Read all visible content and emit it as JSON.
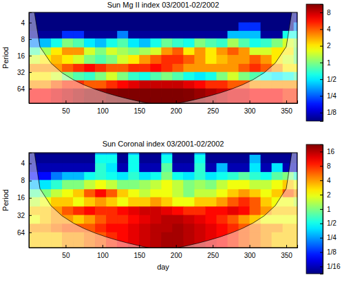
{
  "chart_data": [
    {
      "type": "heatmap",
      "title": "Sun Mg II index 03/2001-02/2002",
      "y_label": "Period",
      "x": [
        0,
        15,
        30,
        45,
        60,
        75,
        90,
        105,
        120,
        135,
        150,
        165,
        180,
        195,
        210,
        225,
        240,
        255,
        270,
        285,
        300,
        315,
        330,
        345,
        360
      ],
      "y": [
        2.8,
        4,
        5.6,
        8,
        11,
        16,
        22,
        32,
        45,
        64,
        90
      ],
      "z": [
        [
          0.06,
          0.06,
          0.06,
          0.06,
          0.06,
          0.06,
          0.06,
          0.06,
          0.06,
          0.06,
          0.06,
          0.06,
          0.06,
          0.06,
          0.06,
          0.06,
          0.06,
          0.06,
          0.06,
          0.06,
          0.06,
          0.06,
          0.06,
          0.06,
          0.06
        ],
        [
          0.07,
          0.07,
          0.07,
          0.07,
          0.07,
          0.07,
          0.07,
          0.07,
          0.07,
          0.07,
          0.07,
          0.07,
          0.07,
          0.07,
          0.07,
          0.07,
          0.07,
          0.07,
          0.07,
          0.07,
          0.07,
          0.07,
          0.07,
          0.07,
          0.1
        ],
        [
          0.08,
          0.08,
          0.08,
          0.08,
          0.08,
          0.08,
          0.08,
          0.08,
          0.08,
          0.08,
          0.08,
          0.08,
          0.08,
          0.08,
          0.08,
          0.08,
          0.08,
          0.08,
          0.08,
          0.2,
          0.2,
          0.08,
          0.08,
          0.08,
          0.3
        ],
        [
          0.1,
          0.1,
          0.1,
          0.2,
          0.2,
          0.1,
          0.1,
          0.1,
          0.3,
          0.1,
          0.1,
          0.1,
          0.1,
          0.1,
          0.1,
          0.1,
          0.1,
          0.1,
          0.4,
          0.4,
          0.4,
          0.1,
          0.1,
          0.6,
          0.6
        ],
        [
          0.3,
          0.4,
          0.6,
          1,
          0.8,
          0.5,
          0.4,
          0.6,
          0.8,
          0.5,
          0.4,
          0.6,
          0.9,
          0.7,
          0.6,
          1,
          0.8,
          0.7,
          1.2,
          0.8,
          0.6,
          0.7,
          1,
          1.5,
          1.2
        ],
        [
          0.8,
          1.2,
          2,
          3,
          3,
          1.5,
          1,
          1.5,
          1.2,
          1,
          1.2,
          1.5,
          3,
          4,
          2,
          3,
          2,
          3,
          4,
          3,
          1.5,
          1.5,
          2,
          2,
          1
        ],
        [
          1.5,
          2,
          2.5,
          2,
          1.5,
          1,
          0.8,
          1,
          1.5,
          2,
          3,
          4,
          5,
          5,
          4,
          3,
          2,
          2.5,
          3,
          3,
          4,
          3,
          2,
          1.5,
          1
        ],
        [
          3,
          3,
          3,
          4,
          5,
          6,
          5,
          4,
          4,
          5,
          5,
          6,
          5,
          4,
          3,
          3,
          3,
          3,
          3,
          4,
          5,
          4,
          3,
          2,
          2
        ],
        [
          2,
          2,
          1.5,
          1,
          0.8,
          0.7,
          1,
          1.5,
          1,
          0.7,
          0.6,
          0.8,
          1,
          0.8,
          0.6,
          0.5,
          0.6,
          1,
          1.5,
          1,
          0.8,
          0.6,
          0.5,
          0.6,
          0.8
        ],
        [
          3,
          3,
          4,
          5,
          5,
          4,
          4,
          5,
          6,
          7,
          8,
          8,
          8,
          8,
          7,
          6,
          5,
          5,
          4,
          4,
          3,
          3,
          3,
          3,
          3
        ],
        [
          6,
          6,
          7,
          8,
          9,
          10,
          10,
          11,
          12,
          12,
          12,
          12,
          12,
          12,
          11,
          10,
          9,
          8,
          7,
          7,
          6,
          6,
          6,
          5,
          5
        ]
      ],
      "xlim": [
        0,
        365
      ],
      "xticks": [
        50,
        100,
        150,
        200,
        250,
        300,
        350
      ],
      "ylim": [
        2.6,
        118
      ],
      "yticks": [
        4,
        8,
        16,
        32,
        64
      ],
      "log": "y",
      "color_bar": {
        "lim": [
          0.088,
          11.3
        ],
        "ticks": [
          {
            "value": 0.125,
            "label": "1/8"
          },
          {
            "value": 0.25,
            "label": "1/4"
          },
          {
            "value": 0.5,
            "label": "1/2"
          },
          1,
          2,
          4,
          8
        ]
      },
      "coi": {
        "x": [
          1,
          15,
          30,
          45,
          60,
          75,
          90,
          105,
          120,
          135,
          150,
          165,
          182,
          200,
          215,
          230,
          245,
          260,
          275,
          290,
          305,
          320,
          335,
          350,
          364
        ],
        "period": [
          0.73,
          11,
          21.9,
          32.9,
          43.8,
          54.8,
          65.7,
          76.7,
          87.6,
          98.6,
          109.5,
          120.5,
          132.9,
          120.5,
          109.5,
          98.6,
          87.6,
          76.7,
          65.7,
          54.8,
          43.8,
          32.9,
          21.9,
          11,
          0.73
        ]
      }
    },
    {
      "type": "heatmap",
      "title": "Sun Coronal index 03/2001-02/2002",
      "x_label": "day",
      "y_label": "Period",
      "x": [
        0,
        15,
        30,
        45,
        60,
        75,
        90,
        105,
        120,
        135,
        150,
        165,
        180,
        195,
        210,
        225,
        240,
        255,
        270,
        285,
        300,
        315,
        330,
        345,
        360
      ],
      "y": [
        2.8,
        4,
        5.6,
        8,
        11,
        16,
        22,
        32,
        45,
        64,
        90
      ],
      "z": [
        [
          0.04,
          0.04,
          0.04,
          0.04,
          0.04,
          0.04,
          0.3,
          0.3,
          0.04,
          0.3,
          0.04,
          0.04,
          0.3,
          0.04,
          0.04,
          0.3,
          0.04,
          0.04,
          0.04,
          0.04,
          0.04,
          0.04,
          0.04,
          0.04,
          0.04
        ],
        [
          0.05,
          0.05,
          0.05,
          0.05,
          0.05,
          0.05,
          0.5,
          0.5,
          0.05,
          0.5,
          0.05,
          0.05,
          0.5,
          0.05,
          0.05,
          0.5,
          0.05,
          0.05,
          0.05,
          0.05,
          0.3,
          0.05,
          0.05,
          0.05,
          0.05
        ],
        [
          0.06,
          0.06,
          0.06,
          0.06,
          0.06,
          0.06,
          0.6,
          0.4,
          0.06,
          0.5,
          0.06,
          0.06,
          0.8,
          0.06,
          0.06,
          0.6,
          0.06,
          0.3,
          0.06,
          0.06,
          0.4,
          0.06,
          0.4,
          0.06,
          0.06
        ],
        [
          0.1,
          0.1,
          0.2,
          0.3,
          0.3,
          0.5,
          0.6,
          0.5,
          0.4,
          0.6,
          0.4,
          0.5,
          1,
          0.5,
          0.4,
          0.6,
          0.4,
          0.5,
          0.6,
          0.8,
          0.6,
          0.5,
          0.8,
          1,
          0.6
        ],
        [
          0.3,
          0.4,
          0.6,
          1,
          1,
          1.5,
          2,
          1.5,
          1,
          1,
          1.2,
          1.5,
          2,
          1.5,
          1,
          1.2,
          1,
          1.5,
          2,
          2,
          1.5,
          1.5,
          2,
          3,
          2
        ],
        [
          0.8,
          1,
          1.5,
          2,
          3,
          6,
          10,
          6,
          3,
          2,
          1.5,
          2,
          2,
          1.5,
          1,
          1.5,
          1.5,
          2,
          3,
          4,
          3,
          2,
          3,
          6,
          4
        ],
        [
          1.5,
          2,
          3,
          3,
          2,
          3,
          4,
          3,
          2,
          3,
          3,
          4,
          3,
          2,
          2,
          3,
          3,
          4,
          6,
          8,
          6,
          3,
          2,
          2,
          1.5
        ],
        [
          3,
          3,
          4,
          6,
          8,
          10,
          8,
          8,
          10,
          12,
          14,
          14,
          12,
          10,
          8,
          8,
          10,
          10,
          12,
          10,
          6,
          4,
          3,
          3,
          3
        ],
        [
          2,
          3,
          4,
          4,
          3,
          4,
          6,
          8,
          8,
          10,
          12,
          14,
          16,
          16,
          14,
          12,
          10,
          8,
          6,
          4,
          3,
          2,
          2,
          2,
          2
        ],
        [
          4,
          4,
          5,
          6,
          6,
          6,
          8,
          10,
          10,
          12,
          14,
          16,
          16,
          18,
          16,
          14,
          12,
          10,
          8,
          6,
          5,
          4,
          4,
          3,
          3
        ],
        [
          3,
          3,
          3,
          4,
          4,
          5,
          6,
          8,
          10,
          12,
          14,
          16,
          18,
          18,
          16,
          14,
          12,
          10,
          8,
          6,
          5,
          4,
          3,
          3,
          3
        ]
      ],
      "xlim": [
        0,
        365
      ],
      "xticks": [
        50,
        100,
        150,
        200,
        250,
        300,
        350
      ],
      "ylim": [
        2.6,
        118
      ],
      "yticks": [
        4,
        8,
        16,
        32,
        64
      ],
      "log": "y",
      "color_bar": {
        "lim": [
          0.044,
          22.6
        ],
        "ticks": [
          {
            "value": 0.0625,
            "label": "1/16"
          },
          {
            "value": 0.125,
            "label": "1/8"
          },
          {
            "value": 0.25,
            "label": "1/4"
          },
          {
            "value": 0.5,
            "label": "1/2"
          },
          1,
          2,
          4,
          8,
          16
        ]
      },
      "coi": {
        "x": [
          1,
          15,
          30,
          45,
          60,
          75,
          90,
          105,
          120,
          135,
          150,
          165,
          182,
          200,
          215,
          230,
          245,
          260,
          275,
          290,
          305,
          320,
          335,
          350,
          364
        ],
        "period": [
          0.73,
          11,
          21.9,
          32.9,
          43.8,
          54.8,
          65.7,
          76.7,
          87.6,
          98.6,
          109.5,
          120.5,
          132.9,
          120.5,
          109.5,
          98.6,
          87.6,
          76.7,
          65.7,
          54.8,
          43.8,
          32.9,
          21.9,
          11,
          0.73
        ]
      }
    }
  ]
}
